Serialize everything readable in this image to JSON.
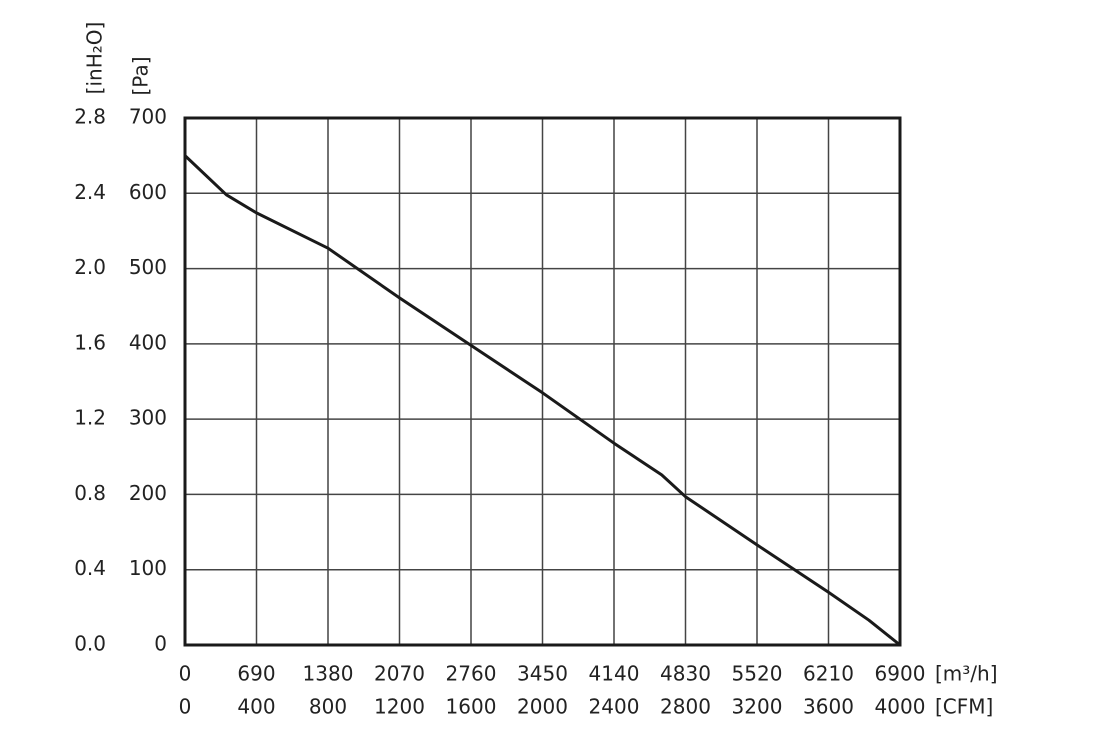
{
  "chart_data": {
    "type": "line",
    "x_label": "[m³/h]",
    "x2_label": "[CFM]",
    "y_label": "[Pa]",
    "y2_label": "[inH₂O]",
    "x": [
      0,
      400,
      690,
      1380,
      2070,
      2760,
      3450,
      4140,
      4600,
      4830,
      5520,
      6210,
      6600,
      6900
    ],
    "values": [
      650,
      598,
      574,
      527,
      461,
      398,
      335,
      268,
      226,
      197,
      133,
      70,
      33,
      0
    ],
    "color": "#1a1a1a",
    "xlim": [
      0,
      6900
    ],
    "xticks": [
      0,
      690,
      1380,
      2070,
      2760,
      3450,
      4140,
      4830,
      5520,
      6210,
      6900
    ],
    "x2lim": [
      0,
      4000
    ],
    "x2ticks": [
      0,
      400,
      800,
      1200,
      1600,
      2000,
      2400,
      2800,
      3200,
      3600,
      4000
    ],
    "ylim": [
      0,
      700
    ],
    "yticks": [
      0,
      100,
      200,
      300,
      400,
      500,
      600,
      700
    ],
    "y2lim": [
      0,
      2.8
    ],
    "y2ticks": [
      {
        "value": 0,
        "label": "0.0"
      },
      0.4,
      0.8,
      1.2,
      1.6,
      {
        "value": 2,
        "label": "2.0"
      },
      2.4,
      2.8
    ],
    "grid": true
  }
}
